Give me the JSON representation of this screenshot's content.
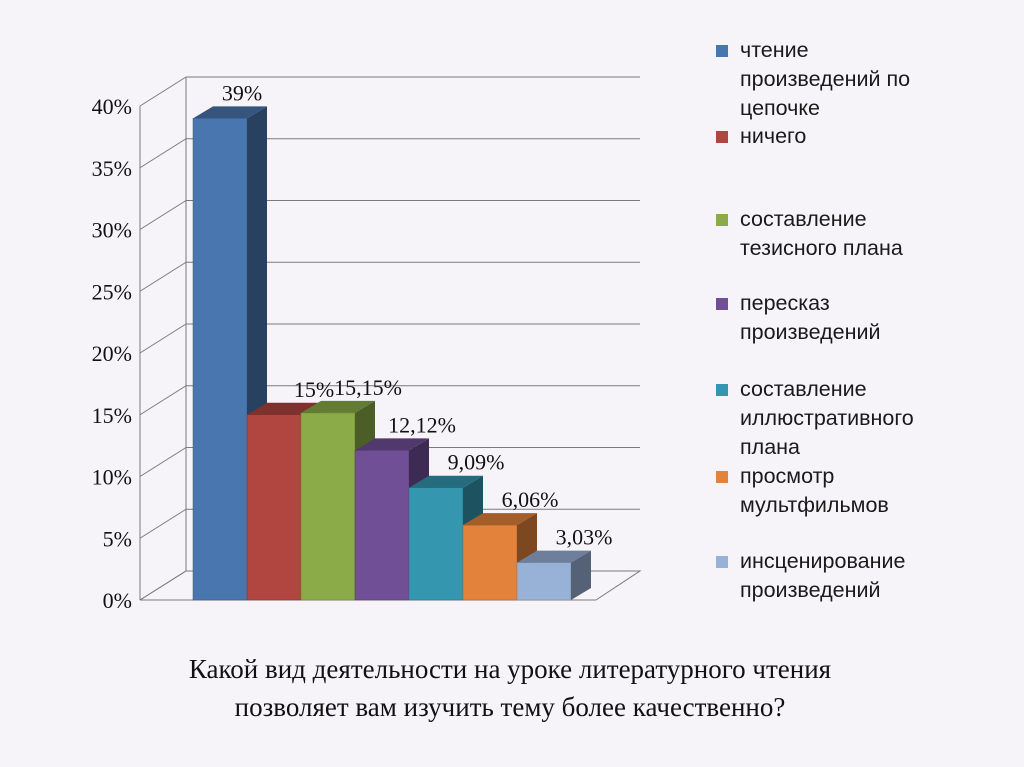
{
  "chart_data": {
    "type": "bar",
    "style": "3d",
    "categories": [
      "чтение произведений по цепочке",
      "ничего",
      "составление тезисного плана",
      "пересказ произведений",
      "составление иллюстративного плана",
      "просмотр мультфильмов",
      "инсценирование произведений"
    ],
    "values": [
      39,
      15,
      15.15,
      12.12,
      9.09,
      6.06,
      3.03
    ],
    "data_labels": [
      "39%",
      "15%",
      "15,15%",
      "12,12%",
      "9,09%",
      "6,06%",
      "3,03%"
    ],
    "colors": [
      "#4a76b0",
      "#b1453f",
      "#8aab47",
      "#704f97",
      "#3497af",
      "#e3823a",
      "#98b1d6"
    ],
    "y_ticks": [
      "0%",
      "5%",
      "10%",
      "15%",
      "20%",
      "25%",
      "30%",
      "35%",
      "40%"
    ],
    "ylim": [
      0,
      40
    ],
    "grid": true,
    "legend_position": "right"
  },
  "legend": [
    {
      "label": "чтение\nпроизведений по\nцепочке",
      "color": "#4a76b0"
    },
    {
      "label": "ничего",
      "color": "#b1453f"
    },
    {
      "label": "составление\nтезисного плана",
      "color": "#8aab47"
    },
    {
      "label": "пересказ\nпроизведений",
      "color": "#704f97"
    },
    {
      "label": "составление\nиллюстративного\nплана",
      "color": "#3497af"
    },
    {
      "label": "просмотр\nмультфильмов",
      "color": "#e3823a"
    },
    {
      "label": "инсценирование\nпроизведений",
      "color": "#98b1d6"
    }
  ],
  "caption": {
    "line1": "Какой вид деятельности на уроке литературного чтения",
    "line2": "позволяет вам изучить тему более качественно?"
  }
}
